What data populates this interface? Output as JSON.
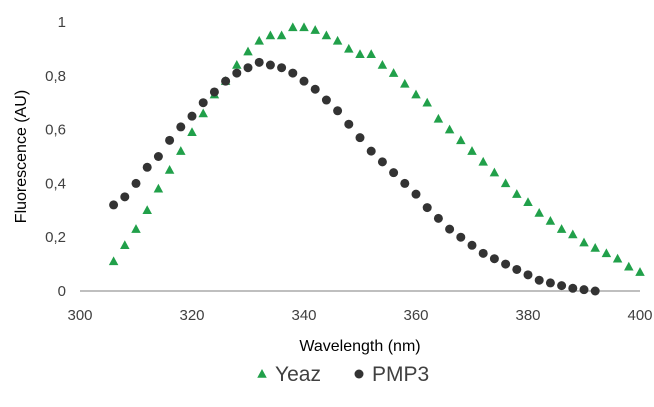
{
  "chart_data": {
    "type": "scatter",
    "xlabel": "Wavelength (nm)",
    "ylabel": "Fluorescence (AU)",
    "xlim": [
      300,
      400
    ],
    "ylim": [
      0,
      1
    ],
    "x_ticks": [
      "300",
      "320",
      "340",
      "360",
      "380",
      "400"
    ],
    "y_ticks": [
      "0",
      "0,2",
      "0,4",
      "0,6",
      "0,8",
      "1"
    ],
    "grid": false,
    "legend_position": "bottom",
    "series": [
      {
        "name": "Yeaz",
        "marker": "triangle",
        "color": "#21a04a",
        "x": [
          306,
          308,
          310,
          312,
          314,
          316,
          318,
          320,
          322,
          324,
          326,
          328,
          330,
          332,
          334,
          336,
          338,
          340,
          342,
          344,
          346,
          348,
          350,
          352,
          354,
          356,
          358,
          360,
          362,
          364,
          366,
          368,
          370,
          372,
          374,
          376,
          378,
          380,
          382,
          384,
          386,
          388,
          390,
          392,
          394,
          396,
          398,
          400
        ],
        "y": [
          0.11,
          0.17,
          0.23,
          0.3,
          0.38,
          0.45,
          0.52,
          0.59,
          0.66,
          0.73,
          0.78,
          0.84,
          0.89,
          0.93,
          0.95,
          0.95,
          0.98,
          0.98,
          0.97,
          0.95,
          0.93,
          0.9,
          0.88,
          0.88,
          0.84,
          0.81,
          0.77,
          0.73,
          0.7,
          0.64,
          0.6,
          0.56,
          0.52,
          0.48,
          0.44,
          0.4,
          0.36,
          0.33,
          0.29,
          0.26,
          0.23,
          0.21,
          0.18,
          0.16,
          0.14,
          0.12,
          0.09,
          0.07
        ]
      },
      {
        "name": "PMP3",
        "marker": "circle",
        "color": "#333333",
        "x": [
          306,
          308,
          310,
          312,
          314,
          316,
          318,
          320,
          322,
          324,
          326,
          328,
          330,
          332,
          334,
          336,
          338,
          340,
          342,
          344,
          346,
          348,
          350,
          352,
          354,
          356,
          358,
          360,
          362,
          364,
          366,
          368,
          370,
          372,
          374,
          376,
          378,
          380,
          382,
          384,
          386,
          388,
          390,
          392
        ],
        "y": [
          0.32,
          0.35,
          0.4,
          0.46,
          0.5,
          0.56,
          0.61,
          0.65,
          0.7,
          0.74,
          0.78,
          0.81,
          0.83,
          0.85,
          0.84,
          0.83,
          0.81,
          0.78,
          0.75,
          0.71,
          0.67,
          0.62,
          0.57,
          0.52,
          0.48,
          0.44,
          0.4,
          0.36,
          0.31,
          0.27,
          0.23,
          0.2,
          0.17,
          0.14,
          0.12,
          0.1,
          0.08,
          0.06,
          0.04,
          0.03,
          0.02,
          0.01,
          0.005,
          0.0
        ]
      }
    ]
  }
}
